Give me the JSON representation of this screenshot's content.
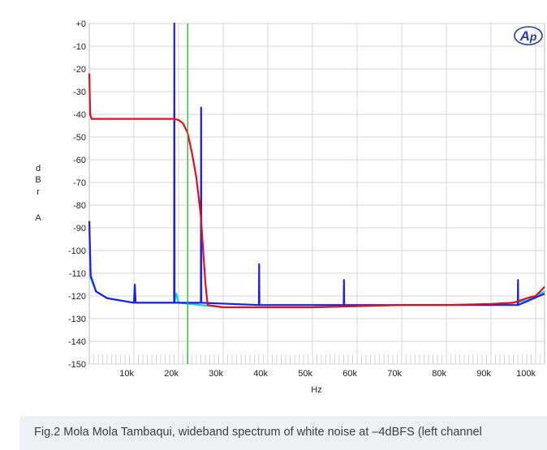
{
  "caption": "Fig.2 Mola Mola Tambaqui, wideband spectrum of white noise at –4dBFS (left channel",
  "chart_data": {
    "type": "line",
    "title": "",
    "xlabel": "Hz",
    "ylabel_letters": [
      "d",
      "B",
      "r",
      "A"
    ],
    "xlim": [
      0,
      102000
    ],
    "ylim": [
      -150,
      0
    ],
    "x_ticks": [
      {
        "value": 10000,
        "label": "10k"
      },
      {
        "value": 20000,
        "label": "20k"
      },
      {
        "value": 30000,
        "label": "30k"
      },
      {
        "value": 40000,
        "label": "40k"
      },
      {
        "value": 50000,
        "label": "50k"
      },
      {
        "value": 60000,
        "label": "60k"
      },
      {
        "value": 70000,
        "label": "70k"
      },
      {
        "value": 80000,
        "label": "80k"
      },
      {
        "value": 90000,
        "label": "90k"
      },
      {
        "value": 100000,
        "label": "100k"
      }
    ],
    "y_ticks": [
      {
        "value": 0,
        "label": "+0"
      },
      {
        "value": -10,
        "label": "-10"
      },
      {
        "value": -20,
        "label": "-20"
      },
      {
        "value": -30,
        "label": "-30"
      },
      {
        "value": -40,
        "label": "-40"
      },
      {
        "value": -50,
        "label": "-50"
      },
      {
        "value": -60,
        "label": "-60"
      },
      {
        "value": -70,
        "label": "-70"
      },
      {
        "value": -80,
        "label": "-80"
      },
      {
        "value": -90,
        "label": "-90"
      },
      {
        "value": -100,
        "label": "-100"
      },
      {
        "value": -110,
        "label": "-110"
      },
      {
        "value": -120,
        "label": "-120"
      },
      {
        "value": -130,
        "label": "-130"
      },
      {
        "value": -140,
        "label": "-140"
      },
      {
        "value": -150,
        "label": "-150"
      }
    ],
    "grid": true,
    "marker_line": {
      "x": 22050,
      "color": "#00cc00"
    },
    "series": [
      {
        "color": "#00d8e0",
        "points": [
          [
            0,
            -88
          ],
          [
            300,
            -112
          ],
          [
            1500,
            -118
          ],
          [
            4000,
            -121
          ],
          [
            10000,
            -123
          ],
          [
            19000,
            -123
          ],
          [
            19500,
            -119
          ],
          [
            20000,
            -123
          ],
          [
            30000,
            -125
          ],
          [
            50000,
            -125
          ],
          [
            70000,
            -124
          ],
          [
            80000,
            -124
          ],
          [
            90000,
            -124
          ],
          [
            95000,
            -123
          ],
          [
            98000,
            -122
          ],
          [
            102000,
            -118
          ]
        ]
      },
      {
        "color": "#2020e0",
        "points": [
          [
            0,
            -87
          ],
          [
            300,
            -111
          ],
          [
            1500,
            -118
          ],
          [
            4000,
            -121
          ],
          [
            10000,
            -123
          ],
          [
            10200,
            -115
          ],
          [
            10400,
            -123
          ],
          [
            19000,
            -123
          ],
          [
            19050,
            0
          ],
          [
            19100,
            -123
          ],
          [
            25000,
            -123
          ],
          [
            25050,
            -37
          ],
          [
            25100,
            -123
          ],
          [
            38000,
            -124
          ],
          [
            38050,
            -106
          ],
          [
            38100,
            -124
          ],
          [
            57000,
            -124
          ],
          [
            57050,
            -113
          ],
          [
            57100,
            -124
          ],
          [
            70000,
            -124
          ],
          [
            96000,
            -124
          ],
          [
            96050,
            -113
          ],
          [
            96100,
            -124
          ],
          [
            102000,
            -119
          ]
        ]
      },
      {
        "color": "#e01020",
        "points": [
          [
            0,
            -22
          ],
          [
            200,
            -40
          ],
          [
            500,
            -42
          ],
          [
            5000,
            -42
          ],
          [
            10000,
            -42
          ],
          [
            15000,
            -42
          ],
          [
            19000,
            -42
          ],
          [
            20000,
            -42.5
          ],
          [
            21000,
            -44
          ],
          [
            22000,
            -48
          ],
          [
            23000,
            -57
          ],
          [
            24000,
            -68
          ],
          [
            25000,
            -85
          ],
          [
            25500,
            -100
          ],
          [
            26000,
            -114
          ],
          [
            26500,
            -124
          ],
          [
            30000,
            -125
          ],
          [
            50000,
            -125
          ],
          [
            70000,
            -124
          ],
          [
            80000,
            -124
          ],
          [
            90000,
            -123.5
          ],
          [
            95000,
            -123
          ],
          [
            98000,
            -121
          ],
          [
            100000,
            -120
          ],
          [
            102000,
            -116
          ]
        ]
      }
    ]
  },
  "logo": {
    "text": "AP",
    "color": "#2a3f9a"
  }
}
